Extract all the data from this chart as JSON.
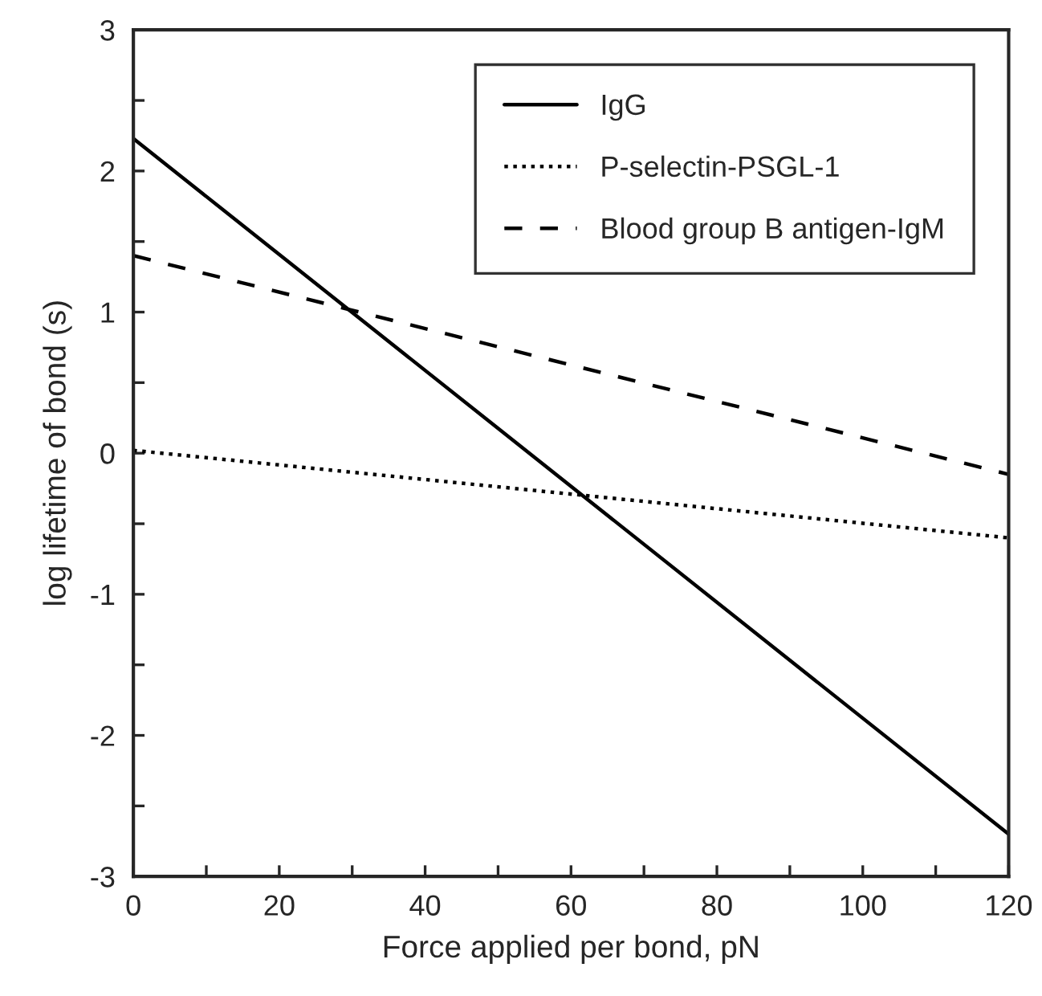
{
  "chart_data": {
    "type": "line",
    "xlabel": "Force applied per bond, pN",
    "ylabel": "log lifetime of bond (s)",
    "x": [
      0,
      120
    ],
    "series": [
      {
        "name": "IgG",
        "color": "#000000",
        "values": [
          2.23,
          -2.7
        ],
        "line_style": "solid"
      },
      {
        "name": "P-selectin-PSGL-1",
        "color": "#000000",
        "values": [
          0.02,
          -0.6
        ],
        "line_style": "dotted"
      },
      {
        "name": "Blood group B antigen-IgM",
        "color": "#000000",
        "values": [
          1.4,
          -0.15
        ],
        "line_style": "dashed"
      }
    ],
    "xlim": [
      0,
      120
    ],
    "ylim": [
      -3,
      3
    ],
    "xticks": [
      0,
      {
        "value": 10,
        "label": null
      },
      20,
      {
        "value": 30,
        "label": null
      },
      40,
      {
        "value": 50,
        "label": null
      },
      60,
      {
        "value": 70,
        "label": null
      },
      80,
      {
        "value": 90,
        "label": null
      },
      100,
      {
        "value": 110,
        "label": null
      },
      120
    ],
    "yticks": [
      -3,
      {
        "value": -2.5,
        "label": null
      },
      -2,
      {
        "value": -1.5,
        "label": null
      },
      -1,
      {
        "value": -0.5,
        "label": null
      },
      0,
      {
        "value": 0.5,
        "label": null
      },
      1,
      {
        "value": 1.5,
        "label": null
      },
      2,
      {
        "value": 2.5,
        "label": null
      },
      3
    ],
    "grid": false,
    "legend": "top right"
  }
}
